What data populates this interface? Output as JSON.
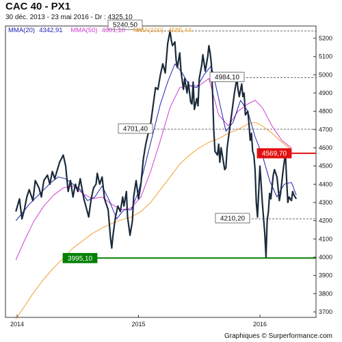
{
  "header": {
    "title": "CAC 40 - PX1",
    "subtitle": "30 déc. 2013 - 23 mai 2016 - Dr : 4325,10"
  },
  "footer": {
    "credit": "Graphiques © Surperformance.com"
  },
  "chart_data": {
    "type": "line",
    "title": "CAC 40 - PX1",
    "y_range": [
      3650,
      5280
    ],
    "x_range": [
      2013.9,
      2016.4
    ],
    "y_ticks": [
      3700,
      3800,
      3900,
      4000,
      4100,
      4200,
      4300,
      4400,
      4500,
      4600,
      4700,
      4800,
      4900,
      5000,
      5100,
      5200
    ],
    "x_ticks": [
      {
        "x": 2014,
        "label": "2014"
      },
      {
        "x": 2015,
        "label": "2015"
      },
      {
        "x": 2016,
        "label": "2016"
      }
    ],
    "grid": "off",
    "legend_placement": "top-left",
    "legend": [
      {
        "name": "MMA(20)",
        "value": "4342,91",
        "color": "#2020b0"
      },
      {
        "name": "MMA(50)",
        "value": "4601,10",
        "color": "#d040d0"
      },
      {
        "name": "MMA(100)",
        "value": "4585,44",
        "color": "#f0a030"
      }
    ],
    "levels": [
      {
        "value": 5240.5,
        "label": "5240,50",
        "style": "dashed",
        "color": "#555555"
      },
      {
        "value": 4984.1,
        "label": "4984,10",
        "style": "dashed",
        "color": "#555555"
      },
      {
        "value": 4701.4,
        "label": "4701,40",
        "style": "dashed",
        "color": "#555555"
      },
      {
        "value": 4569.7,
        "label": "4569,70",
        "style": "solid",
        "color": "#e01010"
      },
      {
        "value": 4210.2,
        "label": "4210,20",
        "style": "dashed",
        "color": "#555555"
      },
      {
        "value": 3995.1,
        "label": "3995,10",
        "style": "solid",
        "color": "#008000"
      }
    ],
    "series": [
      {
        "name": "PX1",
        "color": "#1a2a3a",
        "points": [
          [
            2013.99,
            4250
          ],
          [
            2014.02,
            4320
          ],
          [
            2014.04,
            4210
          ],
          [
            2014.06,
            4260
          ],
          [
            2014.08,
            4330
          ],
          [
            2014.1,
            4370
          ],
          [
            2014.13,
            4310
          ],
          [
            2014.15,
            4420
          ],
          [
            2014.18,
            4380
          ],
          [
            2014.2,
            4330
          ],
          [
            2014.22,
            4420
          ],
          [
            2014.25,
            4450
          ],
          [
            2014.27,
            4400
          ],
          [
            2014.29,
            4470
          ],
          [
            2014.31,
            4430
          ],
          [
            2014.35,
            4520
          ],
          [
            2014.38,
            4560
          ],
          [
            2014.4,
            4500
          ],
          [
            2014.42,
            4360
          ],
          [
            2014.44,
            4420
          ],
          [
            2014.46,
            4330
          ],
          [
            2014.48,
            4400
          ],
          [
            2014.5,
            4360
          ],
          [
            2014.52,
            4430
          ],
          [
            2014.55,
            4320
          ],
          [
            2014.57,
            4270
          ],
          [
            2014.59,
            4220
          ],
          [
            2014.61,
            4320
          ],
          [
            2014.63,
            4380
          ],
          [
            2014.65,
            4400
          ],
          [
            2014.66,
            4460
          ],
          [
            2014.68,
            4400
          ],
          [
            2014.7,
            4440
          ],
          [
            2014.72,
            4320
          ],
          [
            2014.75,
            4260
          ],
          [
            2014.77,
            4100
          ],
          [
            2014.78,
            4050
          ],
          [
            2014.79,
            4120
          ],
          [
            2014.81,
            4220
          ],
          [
            2014.83,
            4280
          ],
          [
            2014.85,
            4250
          ],
          [
            2014.87,
            4330
          ],
          [
            2014.88,
            4280
          ],
          [
            2014.9,
            4360
          ],
          [
            2014.91,
            4220
          ],
          [
            2014.93,
            4120
          ],
          [
            2014.95,
            4200
          ],
          [
            2014.96,
            4330
          ],
          [
            2014.98,
            4420
          ],
          [
            2015.0,
            4320
          ],
          [
            2015.02,
            4400
          ],
          [
            2015.04,
            4540
          ],
          [
            2015.06,
            4620
          ],
          [
            2015.08,
            4680
          ],
          [
            2015.1,
            4730
          ],
          [
            2015.12,
            4830
          ],
          [
            2015.14,
            4930
          ],
          [
            2015.16,
            4920
          ],
          [
            2015.18,
            5000
          ],
          [
            2015.2,
            5060
          ],
          [
            2015.22,
            5010
          ],
          [
            2015.24,
            5170
          ],
          [
            2015.26,
            5240
          ],
          [
            2015.27,
            5190
          ],
          [
            2015.28,
            5160
          ],
          [
            2015.3,
            5180
          ],
          [
            2015.31,
            5080
          ],
          [
            2015.32,
            5040
          ],
          [
            2015.34,
            5120
          ],
          [
            2015.35,
            5020
          ],
          [
            2015.37,
            4920
          ],
          [
            2015.38,
            4980
          ],
          [
            2015.4,
            4900
          ],
          [
            2015.41,
            4960
          ],
          [
            2015.43,
            4850
          ],
          [
            2015.44,
            4840
          ],
          [
            2015.45,
            4960
          ],
          [
            2015.46,
            4810
          ],
          [
            2015.48,
            4870
          ],
          [
            2015.49,
            4830
          ],
          [
            2015.5,
            4980
          ],
          [
            2015.52,
            5050
          ],
          [
            2015.53,
            5110
          ],
          [
            2015.55,
            5020
          ],
          [
            2015.57,
            5100
          ],
          [
            2015.58,
            5160
          ],
          [
            2015.59,
            5120
          ],
          [
            2015.6,
            5060
          ],
          [
            2015.61,
            4900
          ],
          [
            2015.62,
            4700
          ],
          [
            2015.63,
            4580
          ],
          [
            2015.65,
            4560
          ],
          [
            2015.66,
            4620
          ],
          [
            2015.67,
            4520
          ],
          [
            2015.68,
            4600
          ],
          [
            2015.69,
            4560
          ],
          [
            2015.71,
            4480
          ],
          [
            2015.72,
            4490
          ],
          [
            2015.73,
            4600
          ],
          [
            2015.75,
            4700
          ],
          [
            2015.77,
            4800
          ],
          [
            2015.79,
            4900
          ],
          [
            2015.81,
            4980
          ],
          [
            2015.82,
            4920
          ],
          [
            2015.83,
            4880
          ],
          [
            2015.85,
            4950
          ],
          [
            2015.86,
            4880
          ],
          [
            2015.87,
            4900
          ],
          [
            2015.88,
            4780
          ],
          [
            2015.9,
            4800
          ],
          [
            2015.91,
            4730
          ],
          [
            2015.92,
            4640
          ],
          [
            2015.93,
            4680
          ],
          [
            2015.94,
            4580
          ],
          [
            2015.95,
            4560
          ],
          [
            2015.96,
            4480
          ],
          [
            2015.97,
            4300
          ],
          [
            2015.98,
            4220
          ],
          [
            2016.0,
            4500
          ],
          [
            2016.01,
            4400
          ],
          [
            2016.02,
            4300
          ],
          [
            2016.04,
            4130
          ],
          [
            2016.05,
            4000
          ],
          [
            2016.06,
            4200
          ],
          [
            2016.07,
            4250
          ],
          [
            2016.08,
            4350
          ],
          [
            2016.09,
            4320
          ],
          [
            2016.11,
            4450
          ],
          [
            2016.12,
            4480
          ],
          [
            2016.14,
            4440
          ],
          [
            2016.15,
            4380
          ],
          [
            2016.16,
            4310
          ],
          [
            2016.17,
            4350
          ],
          [
            2016.19,
            4470
          ],
          [
            2016.21,
            4570
          ],
          [
            2016.22,
            4420
          ],
          [
            2016.23,
            4300
          ],
          [
            2016.24,
            4330
          ],
          [
            2016.26,
            4310
          ],
          [
            2016.27,
            4360
          ],
          [
            2016.28,
            4340
          ],
          [
            2016.3,
            4320
          ]
        ]
      },
      {
        "name": "MMA(20)",
        "color": "#2020b0",
        "points": [
          [
            2013.99,
            4200
          ],
          [
            2014.04,
            4240
          ],
          [
            2014.1,
            4290
          ],
          [
            2014.16,
            4330
          ],
          [
            2014.22,
            4370
          ],
          [
            2014.28,
            4410
          ],
          [
            2014.34,
            4440
          ],
          [
            2014.4,
            4430
          ],
          [
            2014.46,
            4400
          ],
          [
            2014.52,
            4370
          ],
          [
            2014.58,
            4310
          ],
          [
            2014.64,
            4330
          ],
          [
            2014.7,
            4390
          ],
          [
            2014.76,
            4310
          ],
          [
            2014.82,
            4210
          ],
          [
            2014.88,
            4260
          ],
          [
            2014.94,
            4260
          ],
          [
            2015.0,
            4360
          ],
          [
            2015.06,
            4520
          ],
          [
            2015.12,
            4680
          ],
          [
            2015.18,
            4840
          ],
          [
            2015.24,
            4960
          ],
          [
            2015.3,
            5060
          ],
          [
            2015.36,
            5010
          ],
          [
            2015.42,
            4940
          ],
          [
            2015.48,
            4930
          ],
          [
            2015.54,
            5000
          ],
          [
            2015.6,
            5050
          ],
          [
            2015.66,
            4870
          ],
          [
            2015.72,
            4690
          ],
          [
            2015.78,
            4740
          ],
          [
            2015.84,
            4860
          ],
          [
            2015.9,
            4800
          ],
          [
            2015.96,
            4660
          ],
          [
            2016.02,
            4560
          ],
          [
            2016.08,
            4420
          ],
          [
            2016.14,
            4330
          ],
          [
            2016.2,
            4400
          ],
          [
            2016.26,
            4410
          ],
          [
            2016.3,
            4340
          ]
        ]
      },
      {
        "name": "MMA(50)",
        "color": "#d040d0",
        "points": [
          [
            2013.99,
            3985
          ],
          [
            2014.06,
            4090
          ],
          [
            2014.14,
            4200
          ],
          [
            2014.22,
            4280
          ],
          [
            2014.3,
            4340
          ],
          [
            2014.38,
            4380
          ],
          [
            2014.46,
            4390
          ],
          [
            2014.54,
            4350
          ],
          [
            2014.62,
            4320
          ],
          [
            2014.7,
            4330
          ],
          [
            2014.78,
            4290
          ],
          [
            2014.86,
            4260
          ],
          [
            2014.94,
            4270
          ],
          [
            2015.02,
            4330
          ],
          [
            2015.1,
            4470
          ],
          [
            2015.18,
            4640
          ],
          [
            2015.26,
            4820
          ],
          [
            2015.34,
            4930
          ],
          [
            2015.42,
            4940
          ],
          [
            2015.5,
            4940
          ],
          [
            2015.58,
            4980
          ],
          [
            2015.66,
            4780
          ],
          [
            2015.74,
            4720
          ],
          [
            2015.82,
            4800
          ],
          [
            2015.9,
            4840
          ],
          [
            2015.96,
            4860
          ],
          [
            2016.02,
            4820
          ],
          [
            2016.1,
            4720
          ],
          [
            2016.18,
            4640
          ],
          [
            2016.26,
            4600
          ]
        ]
      },
      {
        "name": "MMA(100)",
        "color": "#f0a030",
        "points": [
          [
            2013.99,
            3660
          ],
          [
            2014.06,
            3730
          ],
          [
            2014.14,
            3810
          ],
          [
            2014.22,
            3880
          ],
          [
            2014.3,
            3940
          ],
          [
            2014.38,
            3995
          ],
          [
            2014.46,
            4050
          ],
          [
            2014.54,
            4090
          ],
          [
            2014.62,
            4130
          ],
          [
            2014.7,
            4160
          ],
          [
            2014.78,
            4185
          ],
          [
            2014.86,
            4205
          ],
          [
            2014.94,
            4220
          ],
          [
            2015.02,
            4250
          ],
          [
            2015.1,
            4300
          ],
          [
            2015.18,
            4370
          ],
          [
            2015.26,
            4440
          ],
          [
            2015.34,
            4510
          ],
          [
            2015.42,
            4560
          ],
          [
            2015.5,
            4600
          ],
          [
            2015.58,
            4630
          ],
          [
            2015.66,
            4650
          ],
          [
            2015.74,
            4680
          ],
          [
            2015.82,
            4700
          ],
          [
            2015.9,
            4730
          ],
          [
            2015.96,
            4740
          ],
          [
            2016.02,
            4720
          ],
          [
            2016.1,
            4680
          ],
          [
            2016.18,
            4630
          ],
          [
            2016.26,
            4590
          ]
        ]
      }
    ]
  }
}
